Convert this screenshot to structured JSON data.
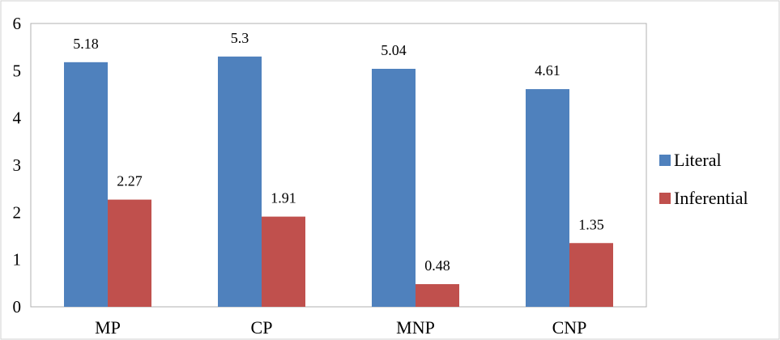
{
  "chart_data": {
    "type": "bar",
    "categories": [
      "MP",
      "CP",
      "MNP",
      "CNP"
    ],
    "series": [
      {
        "name": "Literal",
        "values": [
          5.18,
          5.3,
          5.04,
          4.61
        ],
        "labels": [
          "5.18",
          "5.3",
          "5.04",
          "4.61"
        ],
        "color": "#4f81bd"
      },
      {
        "name": "Inferential",
        "values": [
          2.27,
          1.91,
          0.48,
          1.35
        ],
        "labels": [
          "2.27",
          "1.91",
          "0.48",
          "1.35"
        ],
        "color": "#c0504d"
      }
    ],
    "ylim": [
      0,
      6
    ],
    "yticks": [
      "0",
      "1",
      "2",
      "3",
      "4",
      "5",
      "6"
    ],
    "title": "",
    "xlabel": "",
    "ylabel": "",
    "grid": false,
    "legend_position": "right"
  }
}
